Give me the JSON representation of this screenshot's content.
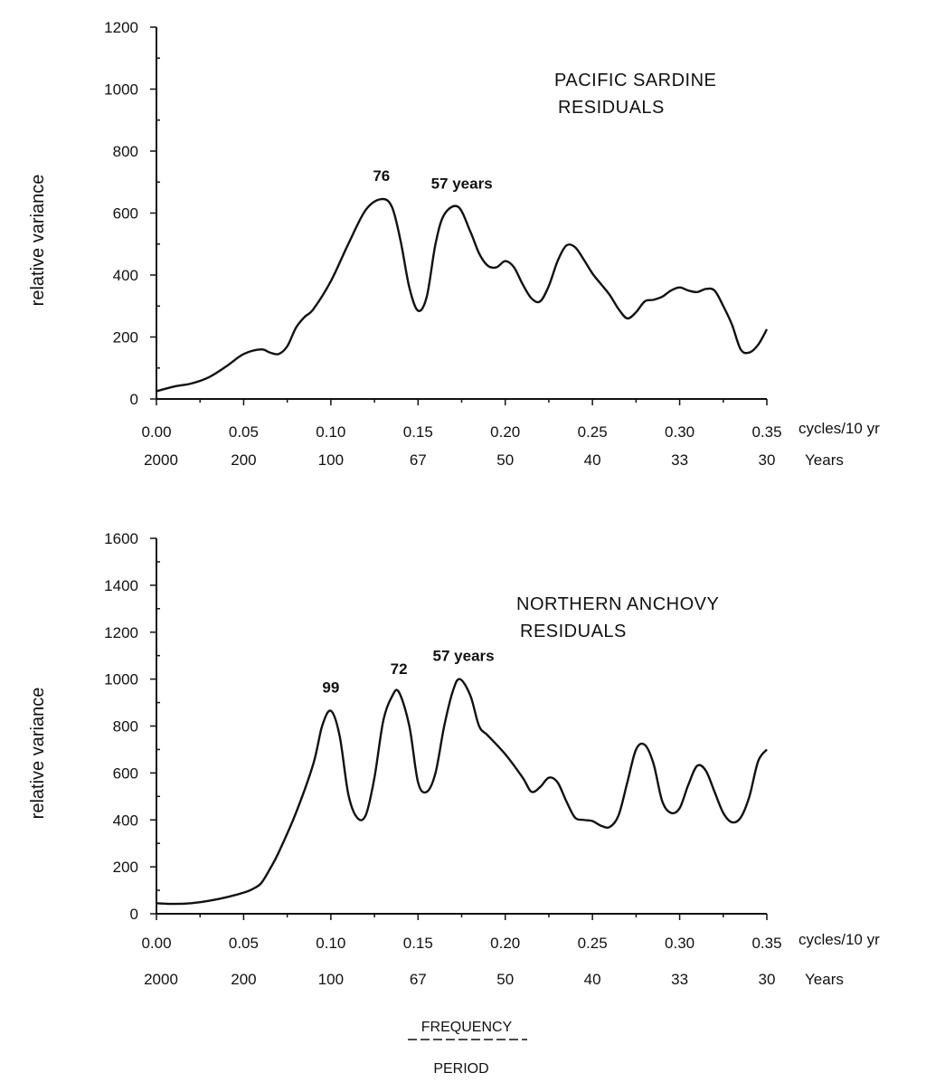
{
  "chart_data": [
    {
      "type": "line",
      "title": "PACIFIC SARDINE",
      "subtitle": "RESIDUALS",
      "ylabel": "relative variance",
      "x_unit_label": "cycles/10 yr",
      "period_unit_label": "Years",
      "ylim": [
        0,
        1200
      ],
      "xlim": [
        0,
        0.35
      ],
      "yticks": [
        0,
        200,
        400,
        600,
        800,
        1000,
        1200
      ],
      "xtick_labels": [
        "0.00",
        "0.05",
        "0.10",
        "0.15",
        "0.20",
        "0.25",
        "0.30",
        "0.35"
      ],
      "period_labels": [
        "2000",
        "200",
        "100",
        "67",
        "50",
        "40",
        "33",
        "30"
      ],
      "annotations": [
        {
          "text": "76",
          "x": 0.129,
          "y": 645
        },
        {
          "text": "57 years",
          "x": 0.173,
          "y": 620
        }
      ],
      "series": [
        {
          "x": [
            0.0,
            0.01,
            0.02,
            0.03,
            0.04,
            0.05,
            0.06,
            0.065,
            0.07,
            0.075,
            0.08,
            0.085,
            0.09,
            0.1,
            0.11,
            0.12,
            0.129,
            0.135,
            0.14,
            0.145,
            0.15,
            0.155,
            0.16,
            0.165,
            0.173,
            0.18,
            0.185,
            0.19,
            0.195,
            0.2,
            0.205,
            0.21,
            0.215,
            0.22,
            0.225,
            0.23,
            0.235,
            0.24,
            0.245,
            0.25,
            0.255,
            0.26,
            0.265,
            0.27,
            0.275,
            0.28,
            0.285,
            0.29,
            0.295,
            0.3,
            0.305,
            0.31,
            0.315,
            0.32,
            0.325,
            0.33,
            0.335,
            0.34,
            0.345,
            0.35
          ],
          "values": [
            25,
            40,
            50,
            70,
            105,
            145,
            160,
            150,
            145,
            170,
            230,
            265,
            290,
            380,
            500,
            610,
            645,
            620,
            510,
            360,
            285,
            330,
            500,
            595,
            620,
            540,
            470,
            430,
            425,
            445,
            425,
            370,
            325,
            315,
            365,
            445,
            495,
            490,
            450,
            405,
            370,
            335,
            290,
            260,
            280,
            315,
            320,
            330,
            350,
            360,
            350,
            345,
            355,
            350,
            300,
            240,
            160,
            150,
            175,
            225
          ]
        }
      ]
    },
    {
      "type": "line",
      "title": "NORTHERN  ANCHOVY",
      "subtitle": "RESIDUALS",
      "ylabel": "relative variance",
      "x_unit_label": "cycles/10 yr",
      "period_unit_label": "Years",
      "ylim": [
        0,
        1600
      ],
      "xlim": [
        0,
        0.35
      ],
      "yticks": [
        0,
        200,
        400,
        600,
        800,
        1000,
        1200,
        1400,
        1600
      ],
      "xtick_labels": [
        "0.00",
        "0.05",
        "0.10",
        "0.15",
        "0.20",
        "0.25",
        "0.30",
        "0.35"
      ],
      "period_labels": [
        "2000",
        "200",
        "100",
        "67",
        "50",
        "40",
        "33",
        "30"
      ],
      "annotations": [
        {
          "text": "99",
          "x": 0.1,
          "y": 865
        },
        {
          "text": "72",
          "x": 0.139,
          "y": 945
        },
        {
          "text": "57 years",
          "x": 0.174,
          "y": 1000
        }
      ],
      "series": [
        {
          "x": [
            0.0,
            0.01,
            0.02,
            0.03,
            0.04,
            0.05,
            0.055,
            0.06,
            0.065,
            0.07,
            0.08,
            0.09,
            0.095,
            0.1,
            0.105,
            0.11,
            0.115,
            0.12,
            0.125,
            0.13,
            0.135,
            0.139,
            0.145,
            0.15,
            0.155,
            0.16,
            0.165,
            0.17,
            0.174,
            0.18,
            0.185,
            0.19,
            0.2,
            0.21,
            0.215,
            0.22,
            0.225,
            0.23,
            0.235,
            0.24,
            0.245,
            0.25,
            0.255,
            0.26,
            0.265,
            0.27,
            0.275,
            0.28,
            0.285,
            0.29,
            0.295,
            0.3,
            0.305,
            0.31,
            0.315,
            0.32,
            0.325,
            0.33,
            0.335,
            0.34,
            0.345,
            0.35
          ],
          "values": [
            45,
            42,
            45,
            55,
            70,
            90,
            105,
            130,
            190,
            260,
            430,
            640,
            800,
            865,
            760,
            510,
            410,
            420,
            580,
            820,
            925,
            945,
            800,
            560,
            520,
            600,
            800,
            950,
            1000,
            930,
            800,
            760,
            680,
            580,
            520,
            540,
            580,
            560,
            480,
            410,
            400,
            395,
            375,
            370,
            420,
            560,
            700,
            720,
            640,
            480,
            430,
            450,
            550,
            630,
            610,
            520,
            430,
            390,
            410,
            500,
            650,
            700
          ]
        }
      ]
    }
  ],
  "footer": {
    "frequency_label": "FREQUENCY",
    "period_label": "PERIOD"
  }
}
